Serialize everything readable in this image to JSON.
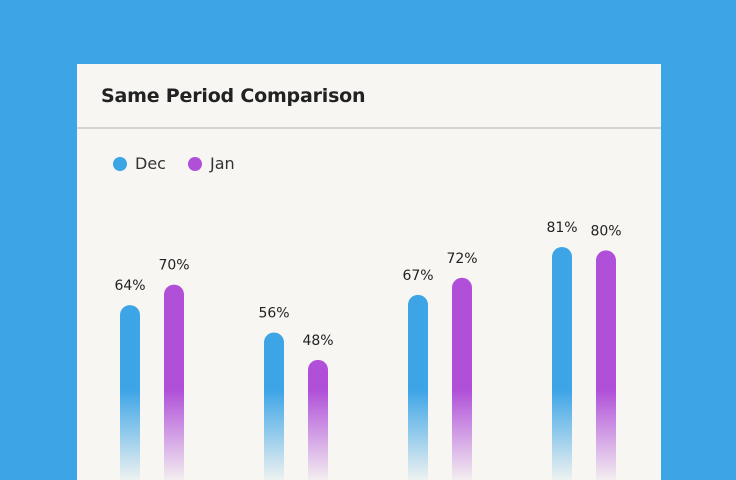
{
  "card": {
    "title": "Same Period Comparison"
  },
  "colors": {
    "background": "#3DA5E6",
    "dec": "#3DA5E6",
    "jan": "#B050D8"
  },
  "chart_data": {
    "type": "bar",
    "title": "Same Period Comparison",
    "categories": [
      "",
      "",
      "",
      ""
    ],
    "series": [
      {
        "name": "Dec",
        "color": "#3DA5E6",
        "values": [
          64,
          56,
          67,
          81
        ],
        "labels": [
          "64%",
          "56%",
          "67%",
          "81%"
        ]
      },
      {
        "name": "Jan",
        "color": "#B050D8",
        "values": [
          70,
          48,
          72,
          80
        ],
        "labels": [
          "70%",
          "48%",
          "72%",
          "80%"
        ]
      }
    ],
    "legend": "top-left",
    "grid": false,
    "ylim": [
      0,
      100
    ]
  }
}
